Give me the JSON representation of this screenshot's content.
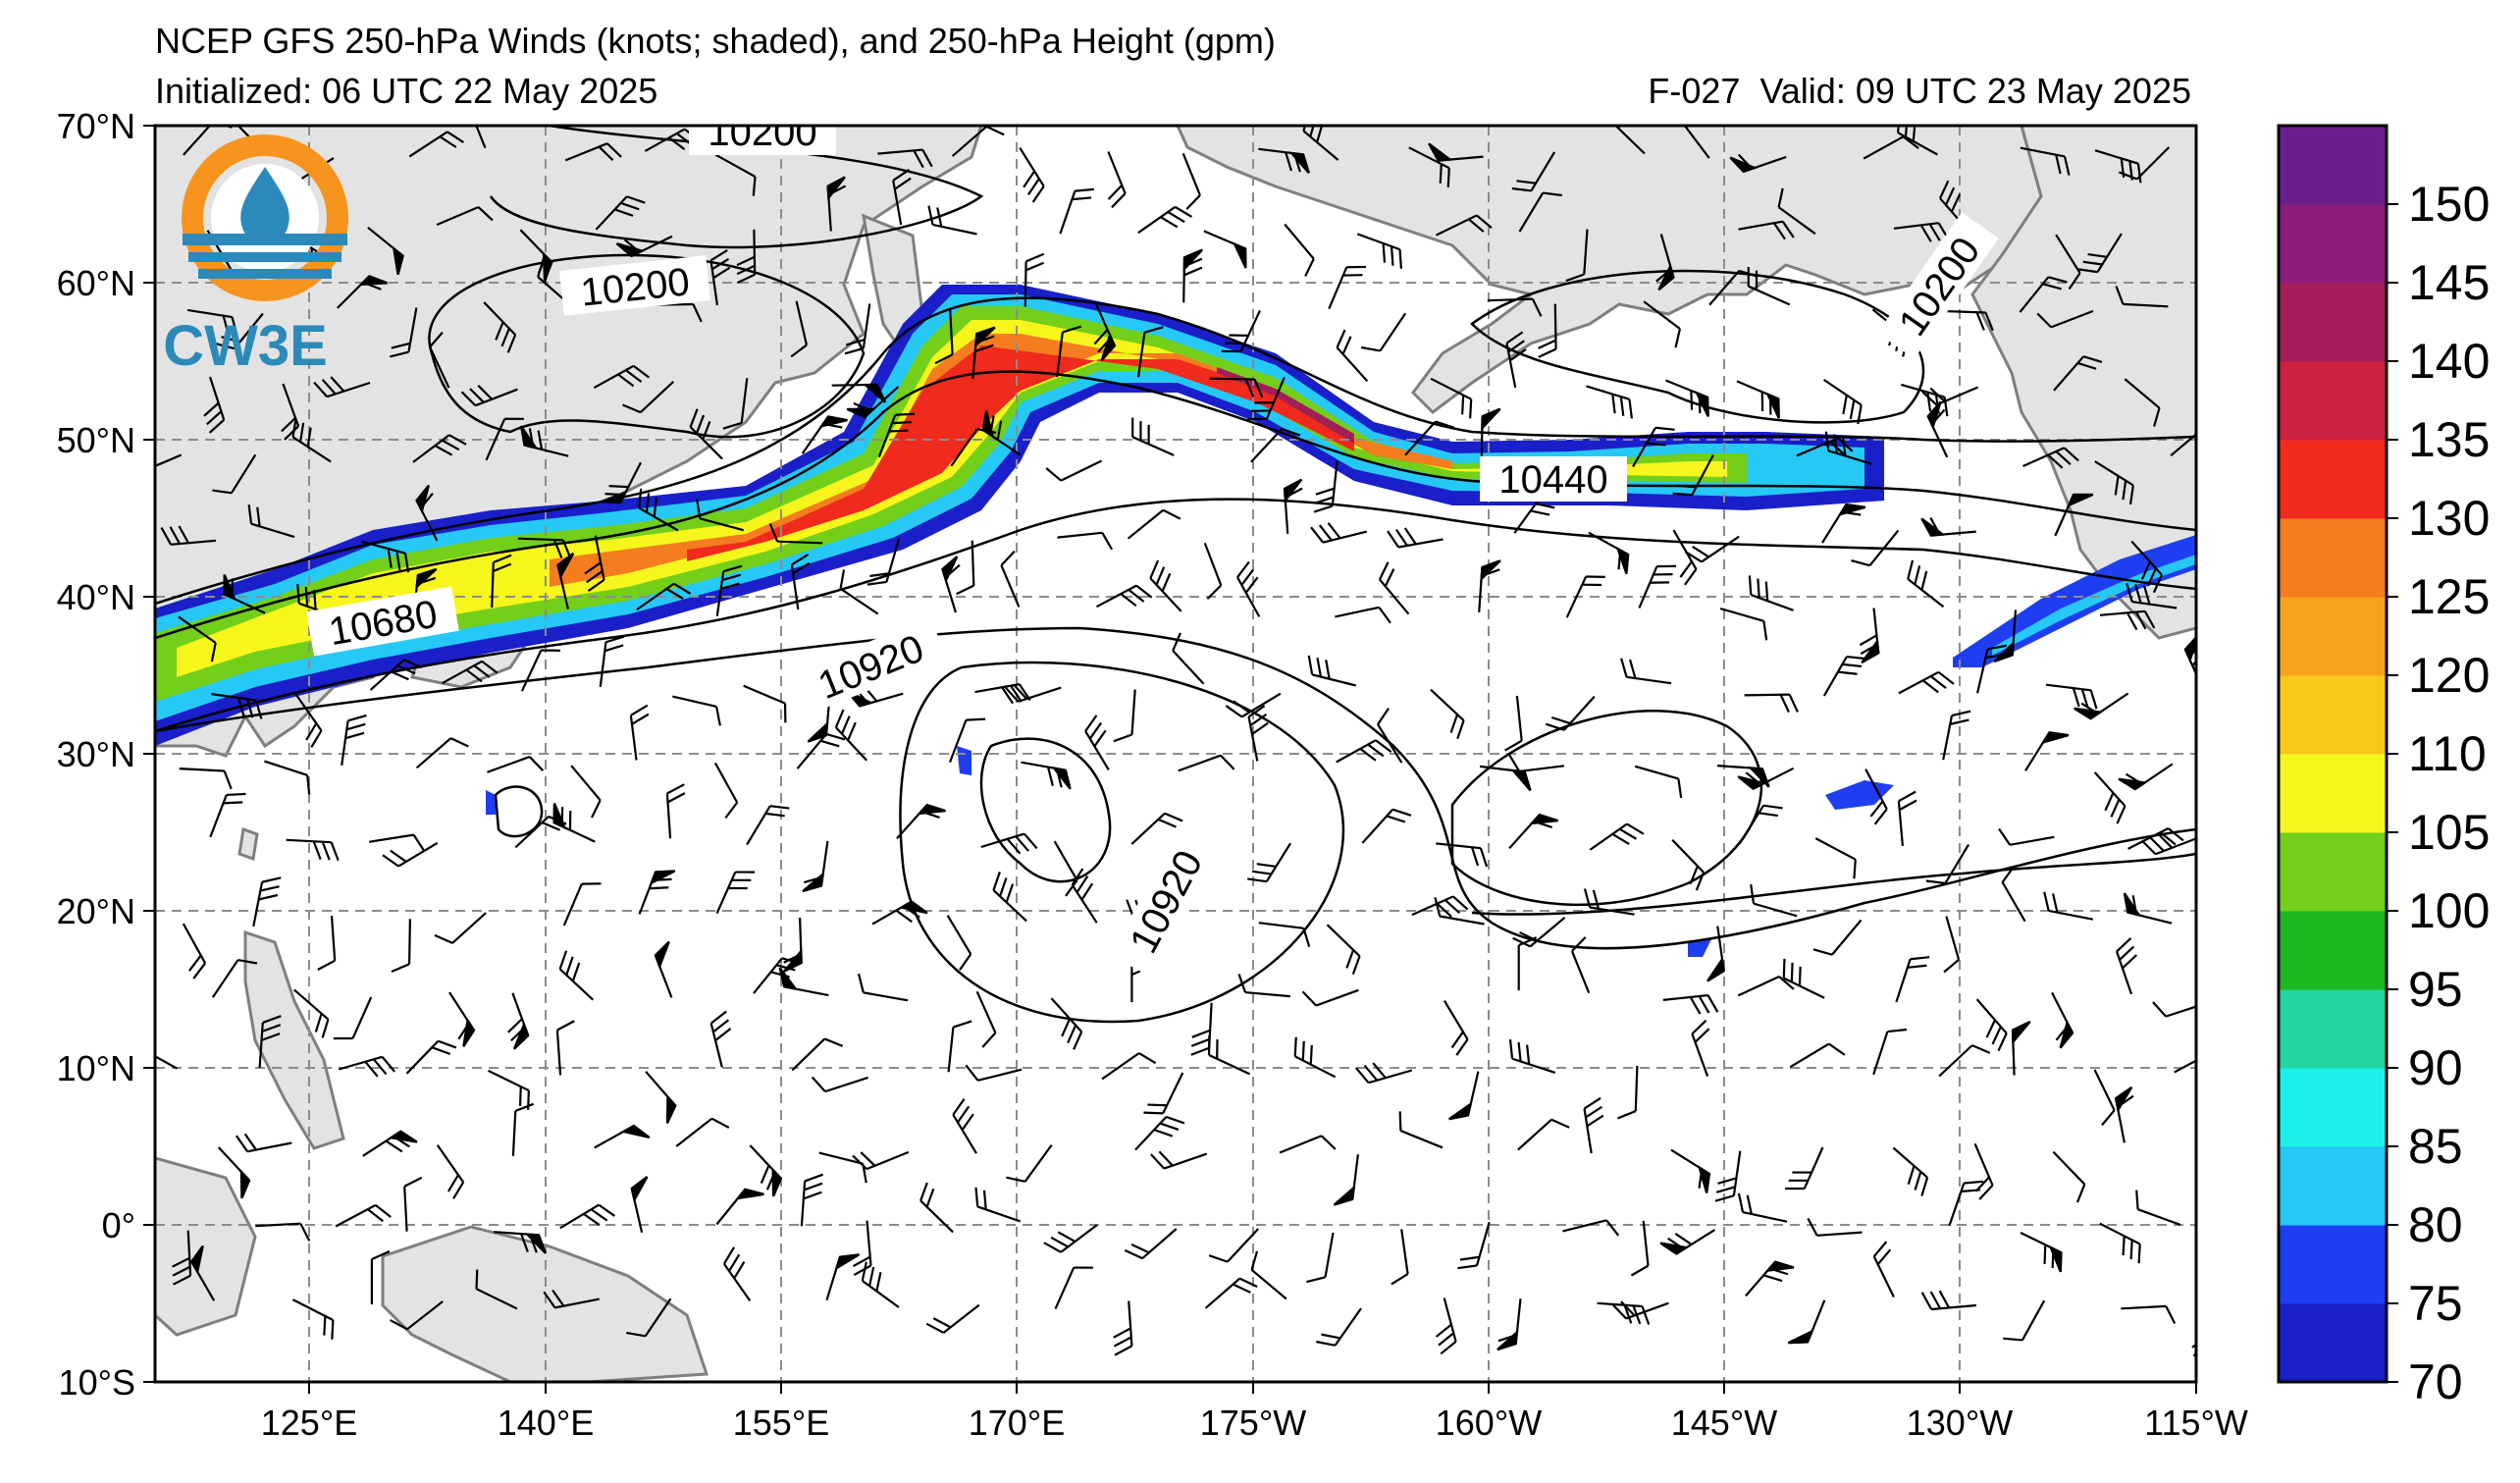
{
  "header": {
    "title": "NCEP GFS 250-hPa Winds (knots; shaded), and 250-hPa Height (gpm)",
    "initialized": "Initialized: 06 UTC 22 May 2025",
    "forecast": "F-027",
    "valid": "Valid: 09 UTC 23 May 2025"
  },
  "logo": {
    "text": "CW3E",
    "ring_color": "#f7941d",
    "blue_color": "#2b8ab9"
  },
  "map": {
    "projection": "equirectangular",
    "lon_range": [
      112,
      245
    ],
    "lat_range": [
      -10,
      70
    ],
    "lat_ticks": [
      "70°N",
      "60°N",
      "50°N",
      "40°N",
      "30°N",
      "20°N",
      "10°N",
      "0°",
      "10°S"
    ],
    "lon_ticks": [
      "125°E",
      "140°E",
      "155°E",
      "170°E",
      "175°W",
      "160°W",
      "145°W",
      "130°W",
      "115°W"
    ],
    "land_color": "#e6e6e6",
    "coast_color": "#808080",
    "grid": true
  },
  "height_contours": {
    "units": "gpm",
    "labels": [
      "10200",
      "10200",
      "10200",
      "10440",
      "10680",
      "10920",
      "10920"
    ]
  },
  "colorbar": {
    "units": "knots",
    "tick_labels": [
      "70",
      "75",
      "80",
      "85",
      "90",
      "95",
      "100",
      "105",
      "110",
      "120",
      "125",
      "130",
      "135",
      "140",
      "145",
      "150"
    ],
    "colors": [
      "#1a1fc9",
      "#1f3ef2",
      "#26c8f6",
      "#1df0ea",
      "#24d4a3",
      "#1cb820",
      "#73cf1a",
      "#f6f61c",
      "#f7c81c",
      "#f7a21d",
      "#f47d1f",
      "#f02a1d",
      "#cc2040",
      "#a31d58",
      "#8c1e7a",
      "#6a1e8c"
    ]
  }
}
